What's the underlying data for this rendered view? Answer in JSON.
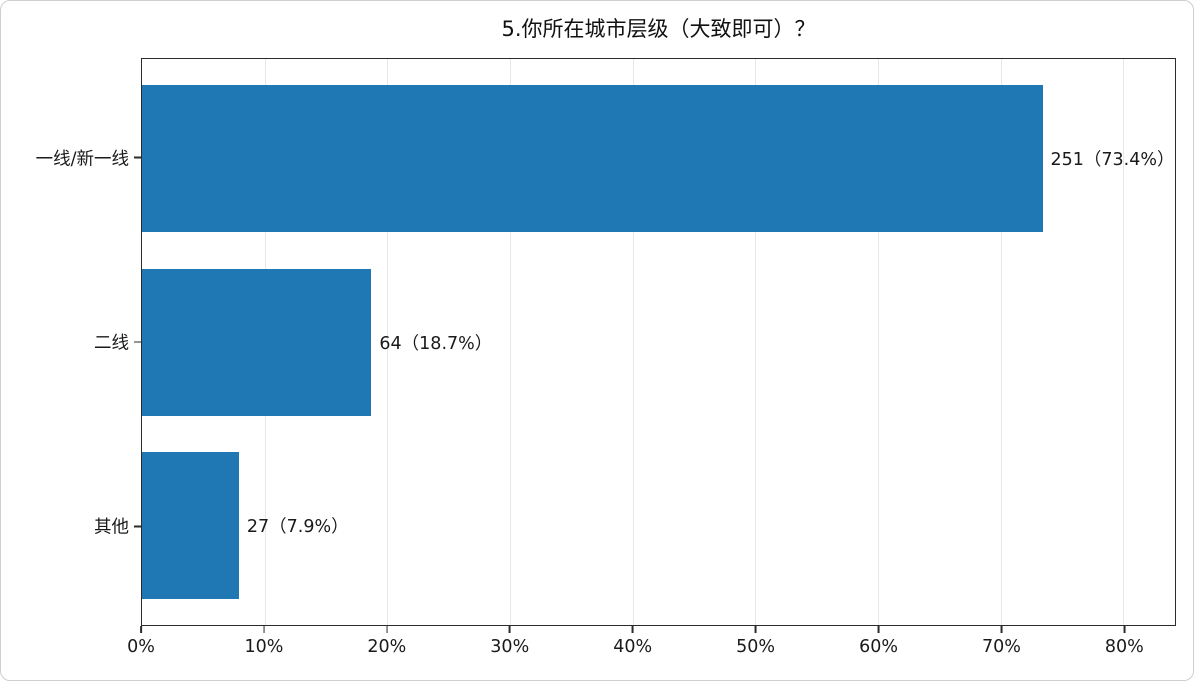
{
  "chart_data": {
    "type": "bar",
    "orientation": "horizontal",
    "title": "5.你所在城市层级（大致即可）？",
    "categories": [
      "一线/新一线",
      "二线",
      "其他"
    ],
    "values": [
      251,
      64,
      27
    ],
    "percentages": [
      73.4,
      18.7,
      7.9
    ],
    "bar_labels": [
      "251（73.4%）",
      "64（18.7%）",
      "27（7.9%）"
    ],
    "xlabel": "",
    "ylabel": "",
    "x_ticks": [
      "0%",
      "10%",
      "20%",
      "30%",
      "40%",
      "50%",
      "60%",
      "70%",
      "80%"
    ],
    "x_tick_values": [
      0,
      10,
      20,
      30,
      40,
      50,
      60,
      70,
      80
    ],
    "xlim": [
      0,
      84.2
    ],
    "grid": "vertical-light",
    "legend": "none",
    "bar_color": "#1f77b4",
    "spine_color": "#2b2b2b",
    "gridline_color": "#e7e7e7"
  }
}
